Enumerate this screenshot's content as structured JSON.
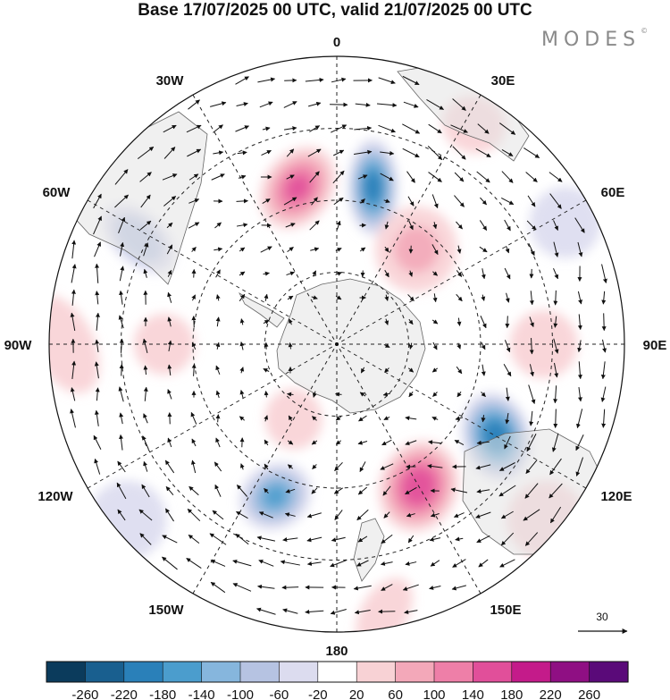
{
  "title": "Base 17/07/2025 00 UTC, valid 21/07/2025 00 UTC",
  "brand": "MODES",
  "brand_mark": "©",
  "longitude_labels": {
    "lon_0": "0",
    "lon_30e": "30E",
    "lon_60e": "60E",
    "lon_90e": "90E",
    "lon_120e": "120E",
    "lon_150e": "150E",
    "lon_180": "180",
    "lon_150w": "150W",
    "lon_120w": "120W",
    "lon_90w": "90W",
    "lon_60w": "60W",
    "lon_30w": "30W"
  },
  "reference_vector": {
    "label": "30",
    "icon": "arrow-right-icon"
  },
  "colorbar": {
    "colors": [
      "#0b3b5c",
      "#195f8f",
      "#2a80b9",
      "#4b9dcd",
      "#86b6dd",
      "#b6c3e2",
      "#dcdcef",
      "#ffffff",
      "#f8d2d5",
      "#f3a8b9",
      "#ee7fa8",
      "#e14f9a",
      "#c41b8a",
      "#8f0f83",
      "#5a0a79"
    ],
    "ticks": [
      "-260",
      "-220",
      "-180",
      "-140",
      "-100",
      "-60",
      "-20",
      "20",
      "60",
      "100",
      "140",
      "180",
      "220",
      "260"
    ]
  },
  "anomalies": [
    {
      "lon": 13,
      "r": 0.56,
      "val": -200,
      "sx": 24,
      "sy": 50
    },
    {
      "lon": -14,
      "r": 0.56,
      "val": 140,
      "sx": 34,
      "sy": 46
    },
    {
      "lon": 120,
      "r": 0.64,
      "val": -210,
      "sx": 46,
      "sy": 34
    },
    {
      "lon": 150,
      "r": 0.57,
      "val": 170,
      "sx": 48,
      "sy": 40
    },
    {
      "lon": -158,
      "r": 0.57,
      "val": -140,
      "sx": 38,
      "sy": 32
    },
    {
      "lon": 40,
      "r": 0.43,
      "val": 60,
      "sx": 42,
      "sy": 44
    },
    {
      "lon": -62,
      "r": 0.78,
      "val": -90,
      "sx": 44,
      "sy": 24
    },
    {
      "lon": 90,
      "r": 0.72,
      "val": 50,
      "sx": 34,
      "sy": 34
    },
    {
      "lon": -90,
      "r": 0.6,
      "val": 40,
      "sx": 30,
      "sy": 30
    },
    {
      "lon": -90,
      "r": 0.95,
      "val": 40,
      "sx": 30,
      "sy": 55
    },
    {
      "lon": -130,
      "r": 0.95,
      "val": -40,
      "sx": 40,
      "sy": 40
    },
    {
      "lon": 62,
      "r": 0.9,
      "val": -35,
      "sx": 36,
      "sy": 36
    },
    {
      "lon": -150,
      "r": 0.3,
      "val": 40,
      "sx": 30,
      "sy": 28
    },
    {
      "lon": 170,
      "r": 0.95,
      "val": 40,
      "sx": 40,
      "sy": 22
    },
    {
      "lon": 130,
      "r": 0.95,
      "val": 40,
      "sx": 40,
      "sy": 40
    },
    {
      "lon": 32,
      "r": 0.9,
      "val": 50,
      "sx": 32,
      "sy": 28
    }
  ]
}
